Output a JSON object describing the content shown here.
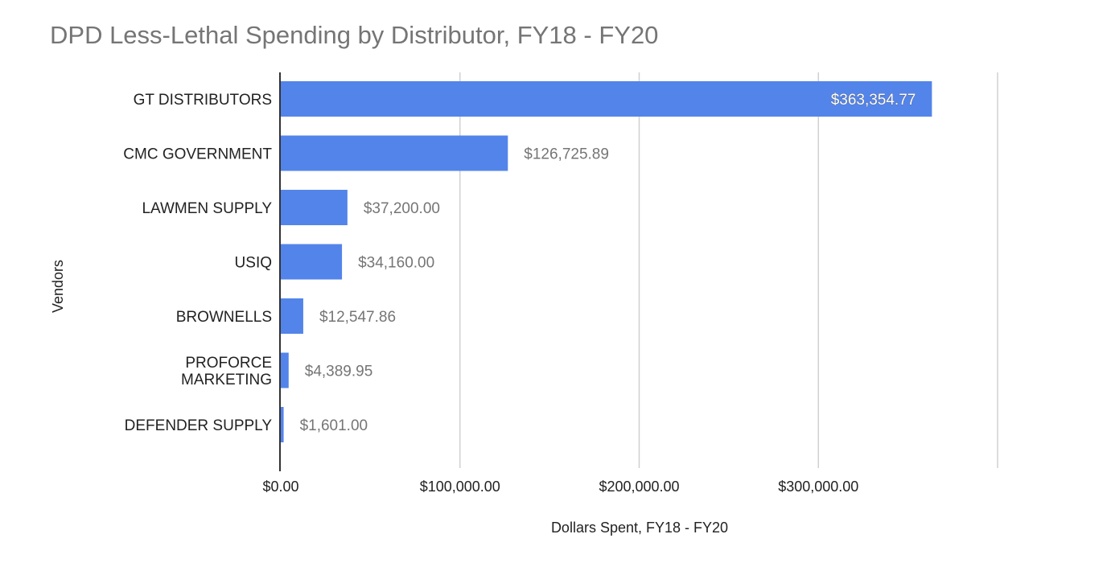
{
  "chart_data": {
    "type": "bar",
    "orientation": "horizontal",
    "title": "DPD Less-Lethal Spending by Distributor, FY18 - FY20",
    "xlabel": "Dollars Spent, FY18 - FY20",
    "ylabel": "Vendors",
    "categories": [
      [
        "GT DISTRIBUTORS"
      ],
      [
        "CMC GOVERNMENT"
      ],
      [
        "LAWMEN SUPPLY"
      ],
      [
        "USIQ"
      ],
      [
        "BROWNELLS"
      ],
      [
        "PROFORCE",
        "MARKETING"
      ],
      [
        "DEFENDER SUPPLY"
      ]
    ],
    "values": [
      363354.77,
      126725.89,
      37200.0,
      34160.0,
      12547.86,
      4389.95,
      1601.0
    ],
    "value_labels": [
      "$363,354.77",
      "$126,725.89",
      "$37,200.00",
      "$34,160.00",
      "$12,547.86",
      "$4,389.95",
      "$1,601.00"
    ],
    "xlim": [
      0,
      400000
    ],
    "xticks": [
      0,
      100000,
      200000,
      300000,
      400000
    ],
    "xtick_labels": [
      "$0.00",
      "$100,000.00",
      "$200,000.00",
      "$300,000.00",
      ""
    ],
    "grid": true,
    "legend": "none",
    "bar_color": "#5384ea",
    "gridline_color": "#d0d0d0"
  }
}
